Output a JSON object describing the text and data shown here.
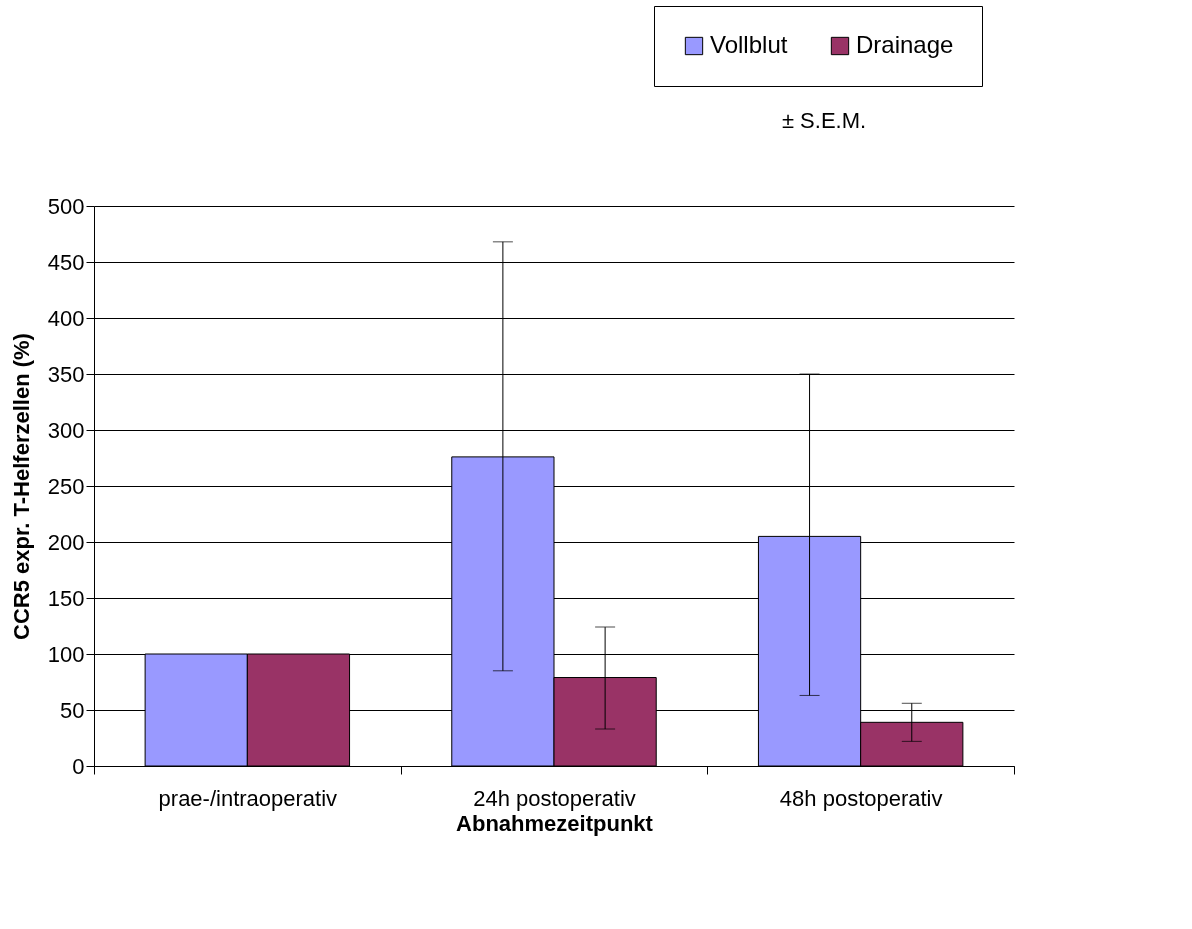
{
  "chart_data": {
    "type": "bar",
    "xlabel": "Abnahmezeitpunkt",
    "ylabel": "CCR5 expr. T-Helferzellen (%)",
    "categories": [
      "prae-/intraoperativ",
      "24h postoperativ",
      "48h postoperativ"
    ],
    "series": [
      {
        "name": "Vollblut",
        "color": "#9999ff",
        "values": [
          100,
          276,
          205
        ],
        "errors": [
          null,
          [
            85,
            468
          ],
          [
            63,
            350
          ]
        ]
      },
      {
        "name": "Drainage",
        "color": "#993366",
        "values": [
          100,
          79,
          39
        ],
        "errors": [
          null,
          [
            33,
            124
          ],
          [
            22,
            56
          ]
        ]
      }
    ],
    "ylim": [
      0,
      500
    ],
    "yticks": [
      0,
      50,
      100,
      150,
      200,
      250,
      300,
      350,
      400,
      450,
      500
    ],
    "grid": "y",
    "legend": "top right",
    "annotations": [
      "± S.E.M."
    ]
  }
}
